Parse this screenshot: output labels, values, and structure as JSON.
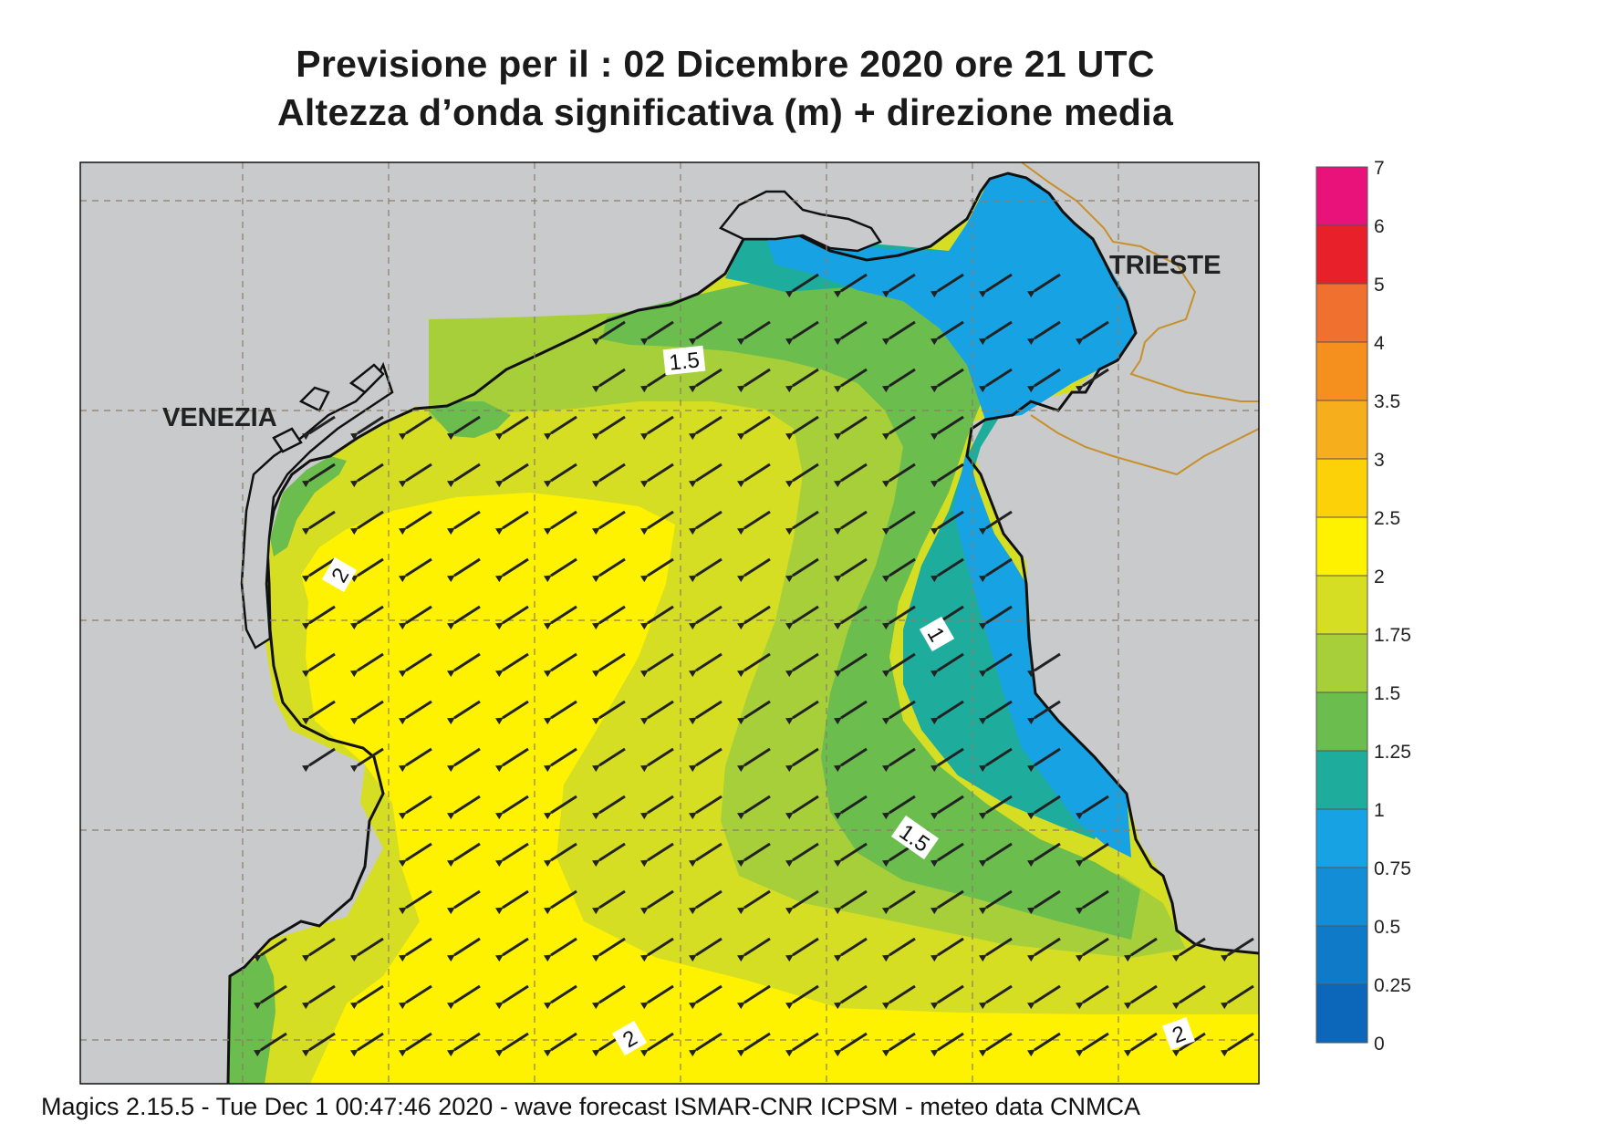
{
  "title": {
    "line1": "Previsione per il  :  02 Dicembre  2020   ore 21 UTC",
    "line2": "Altezza d’onda significativa (m) + direzione media"
  },
  "footer": "Magics 2.15.5 - Tue Dec  1 00:47:46 2020 - wave forecast  ISMAR-CNR  ICPSM - meteo data   CNMCA",
  "places": {
    "venezia": "VENEZIA",
    "trieste": "TRIESTE"
  },
  "contour_labels": {
    "c15_north": "1.5",
    "c2_west": "2",
    "c1_east": "1",
    "c15_south": "1.5",
    "c2_south_a": "2",
    "c2_south_b": "2"
  },
  "legend": {
    "ticks": [
      "7",
      "6",
      "5",
      "4",
      "3.5",
      "3",
      "2.5",
      "2",
      "1.75",
      "1.5",
      "1.25",
      "1",
      "0.75",
      "0.5",
      "0.25",
      "0"
    ],
    "bands": [
      {
        "from": "6",
        "to": "7",
        "color": "#e8127a"
      },
      {
        "from": "5",
        "to": "6",
        "color": "#e8202a"
      },
      {
        "from": "4",
        "to": "5",
        "color": "#f07030"
      },
      {
        "from": "3.5",
        "to": "4",
        "color": "#f5901e"
      },
      {
        "from": "3",
        "to": "3.5",
        "color": "#f7ae1c"
      },
      {
        "from": "2.5",
        "to": "3",
        "color": "#fcd108"
      },
      {
        "from": "2",
        "to": "2.5",
        "color": "#fff200"
      },
      {
        "from": "1.75",
        "to": "2",
        "color": "#d6de24"
      },
      {
        "from": "1.5",
        "to": "1.75",
        "color": "#a6cf3a"
      },
      {
        "from": "1.25",
        "to": "1.5",
        "color": "#6bbd4e"
      },
      {
        "from": "1",
        "to": "1.25",
        "color": "#1ead9c"
      },
      {
        "from": "0.75",
        "to": "1",
        "color": "#16a2e3"
      },
      {
        "from": "0.5",
        "to": "0.75",
        "color": "#138ed6"
      },
      {
        "from": "0.25",
        "to": "0.5",
        "color": "#0f7bc8"
      },
      {
        "from": "0",
        "to": "0.25",
        "color": "#0c66b9"
      }
    ]
  },
  "colors": {
    "land": "#c9cacc",
    "sea_high": "#fff200",
    "sea_mid": "#d6de24",
    "sea_green": "#a6cf3a",
    "sea_green2": "#6bbd4e",
    "sea_teal": "#1ead9c",
    "sea_blue": "#16a2e3",
    "border": "#c8902a",
    "arrow": "#222222"
  },
  "mean_direction": "from east-northeast toward west-southwest"
}
